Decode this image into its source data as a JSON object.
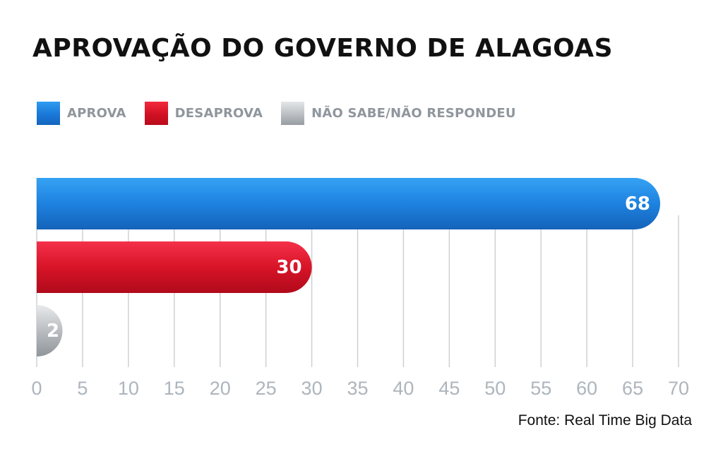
{
  "chart_data": {
    "type": "bar",
    "orientation": "horizontal",
    "title": "APROVAÇÃO DO GOVERNO DE ALAGOAS",
    "categories": [
      "APROVA",
      "DESAPROVA",
      "NÃO SABE/NÃO RESPONDEU"
    ],
    "values": [
      68,
      30,
      2
    ],
    "colors": [
      "#1f84e2",
      "#dd1428",
      "#b3b7bb"
    ],
    "xlim": [
      0,
      70
    ],
    "xticks": [
      0,
      5,
      10,
      15,
      20,
      25,
      30,
      35,
      40,
      45,
      50,
      55,
      60,
      65,
      70
    ],
    "grid": true,
    "legend_position": "top-left",
    "source": "Fonte: Real Time Big Data"
  }
}
